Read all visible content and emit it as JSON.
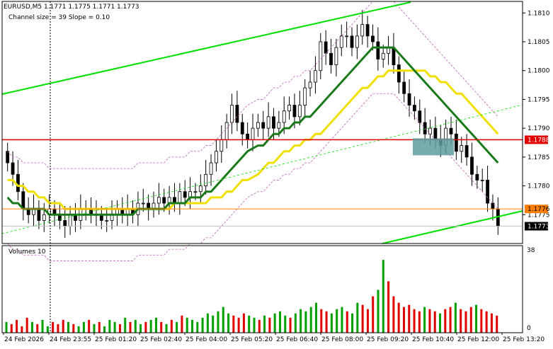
{
  "header": {
    "symbol_info": "EURUSD,M5  1.1771 1.1775 1.1771 1.1773",
    "indicator_info": "Channel size = 39 Slope = 0.10"
  },
  "volumes": {
    "title": "Volumes 10",
    "max_label": "38",
    "zero_label": "0"
  },
  "price_tags": {
    "red_line": "1.1788",
    "orange_line": "1.1776",
    "current": "1.1773"
  },
  "colors": {
    "background": "#ffffff",
    "candles": "#000000",
    "ma_fast": "#1a7a1a",
    "ma_slow": "#f0e000",
    "channel_line": "#00e000",
    "envelope": "#c060c0",
    "support_line": "#e00000",
    "current_line": "#ff8000",
    "highlight_box": "#5f9ea0",
    "volume_up": "#00a000",
    "volume_down": "#e00000"
  },
  "chart_data": {
    "type": "candlestick",
    "symbol": "EURUSD",
    "timeframe": "M5",
    "ohlc": {
      "open": 1.1771,
      "high": 1.1775,
      "low": 1.1771,
      "close": 1.1773
    },
    "ylim": [
      1.177,
      1.1812
    ],
    "y_ticks": [
      "1.1810",
      "1.1805",
      "1.1800",
      "1.1795",
      "1.1790",
      "1.1785",
      "1.1780",
      "1.1775"
    ],
    "x_ticks": [
      "24 Feb 2026",
      "24 Feb 23:55",
      "25 Feb 01:20",
      "25 Feb 02:40",
      "25 Feb 04:00",
      "25 Feb 05:20",
      "25 Feb 06:40",
      "25 Feb 08:00",
      "25 Feb 09:20",
      "25 Feb 10:40",
      "25 Feb 12:00",
      "25 Feb 13:20"
    ],
    "horizontal_lines": [
      {
        "price": 1.1788,
        "color": "red"
      },
      {
        "price": 1.1776,
        "color": "orange"
      }
    ],
    "current_price": 1.1773,
    "close_series": [
      1.1784,
      1.1782,
      1.1779,
      1.1776,
      1.1775,
      1.1776,
      1.1774,
      1.1775,
      1.1776,
      1.1775,
      1.1774,
      1.1773,
      1.1775,
      1.1774,
      1.1776,
      1.1776,
      1.1775,
      1.1775,
      1.1774,
      1.1774,
      1.1775,
      1.1776,
      1.1775,
      1.1776,
      1.1775,
      1.1777,
      1.1777,
      1.1776,
      1.1777,
      1.1778,
      1.1777,
      1.1778,
      1.1777,
      1.1779,
      1.1778,
      1.1779,
      1.1779,
      1.178,
      1.1782,
      1.1784,
      1.1786,
      1.1788,
      1.1791,
      1.1794,
      1.1791,
      1.1789,
      1.1788,
      1.179,
      1.1791,
      1.179,
      1.1792,
      1.179,
      1.1791,
      1.1793,
      1.1794,
      1.1792,
      1.1794,
      1.1797,
      1.1798,
      1.18,
      1.1805,
      1.1803,
      1.1801,
      1.1804,
      1.1806,
      1.1806,
      1.1804,
      1.1806,
      1.1808,
      1.1806,
      1.1805,
      1.1802,
      1.1803,
      1.1804,
      1.1801,
      1.1798,
      1.1796,
      1.1794,
      1.1793,
      1.1791,
      1.1789,
      1.179,
      1.1788,
      1.1787,
      1.179,
      1.1789,
      1.1786,
      1.1787,
      1.1785,
      1.1782,
      1.1781,
      1.1781,
      1.1777,
      1.1776,
      1.1773
    ],
    "ma_fast_series": [
      1.1778,
      1.1777,
      1.1777,
      1.1776,
      1.1776,
      1.1776,
      1.1776,
      1.1776,
      1.1775,
      1.1775,
      1.1775,
      1.1775,
      1.1775,
      1.1775,
      1.1775,
      1.1775,
      1.1775,
      1.1775,
      1.1775,
      1.1775,
      1.1775,
      1.1775,
      1.1775,
      1.1775,
      1.1775,
      1.1776,
      1.1776,
      1.1776,
      1.1776,
      1.1776,
      1.1776,
      1.1777,
      1.1777,
      1.1777,
      1.1777,
      1.1778,
      1.1778,
      1.1778,
      1.1779,
      1.1779,
      1.178,
      1.1781,
      1.1782,
      1.1783,
      1.1784,
      1.1785,
      1.1786,
      1.1787,
      1.1787,
      1.1788,
      1.1789,
      1.1789,
      1.179,
      1.179,
      1.1791,
      1.1791,
      1.1792,
      1.1792,
      1.1793,
      1.1794,
      1.1795,
      1.1796,
      1.1797,
      1.1798,
      1.1799,
      1.18,
      1.1801,
      1.1802,
      1.1803,
      1.1804,
      1.1804,
      1.1804,
      1.1804,
      1.1804,
      1.1803,
      1.1802,
      1.1801,
      1.18,
      1.1799,
      1.1798,
      1.1797,
      1.1796,
      1.1795,
      1.1794,
      1.1793,
      1.1792,
      1.1791,
      1.179,
      1.1789,
      1.1788,
      1.1787,
      1.1786,
      1.1785,
      1.1784
    ],
    "ma_slow_series": [
      1.1781,
      1.1781,
      1.178,
      1.178,
      1.1779,
      1.1779,
      1.1778,
      1.1778,
      1.1777,
      1.1777,
      1.1777,
      1.1776,
      1.1776,
      1.1776,
      1.1776,
      1.1776,
      1.1776,
      1.1776,
      1.1776,
      1.1776,
      1.1776,
      1.1776,
      1.1776,
      1.1776,
      1.1776,
      1.1776,
      1.1776,
      1.1776,
      1.1776,
      1.1776,
      1.1776,
      1.1777,
      1.1777,
      1.1777,
      1.1777,
      1.1777,
      1.1777,
      1.1777,
      1.1778,
      1.1778,
      1.1778,
      1.1779,
      1.1779,
      1.178,
      1.1781,
      1.1781,
      1.1782,
      1.1783,
      1.1784,
      1.1784,
      1.1785,
      1.1786,
      1.1786,
      1.1787,
      1.1787,
      1.1788,
      1.1788,
      1.1789,
      1.1789,
      1.179,
      1.1791,
      1.1792,
      1.1793,
      1.1794,
      1.1795,
      1.1796,
      1.1797,
      1.1797,
      1.1798,
      1.1799,
      1.1799,
      1.18,
      1.18,
      1.18,
      1.18,
      1.18,
      1.18,
      1.18,
      1.1799,
      1.1799,
      1.1798,
      1.1798,
      1.1797,
      1.1796,
      1.1796,
      1.1795,
      1.1794,
      1.1793,
      1.1792,
      1.1791,
      1.179,
      1.1789
    ],
    "volume_series": [
      5,
      4,
      6,
      3,
      7,
      5,
      4,
      6,
      3,
      5,
      4,
      6,
      5,
      4,
      3,
      5,
      6,
      4,
      5,
      3,
      6,
      5,
      4,
      7,
      5,
      6,
      4,
      5,
      6,
      7,
      5,
      4,
      6,
      5,
      8,
      7,
      6,
      5,
      7,
      9,
      8,
      10,
      12,
      9,
      8,
      7,
      9,
      8,
      7,
      6,
      8,
      7,
      9,
      10,
      8,
      7,
      9,
      11,
      10,
      12,
      14,
      11,
      10,
      9,
      11,
      12,
      10,
      9,
      14,
      13,
      11,
      17,
      20,
      34,
      24,
      17,
      14,
      12,
      13,
      11,
      10,
      12,
      11,
      10,
      9,
      11,
      12,
      14,
      11,
      10,
      12,
      13,
      11,
      10,
      9,
      8
    ]
  }
}
